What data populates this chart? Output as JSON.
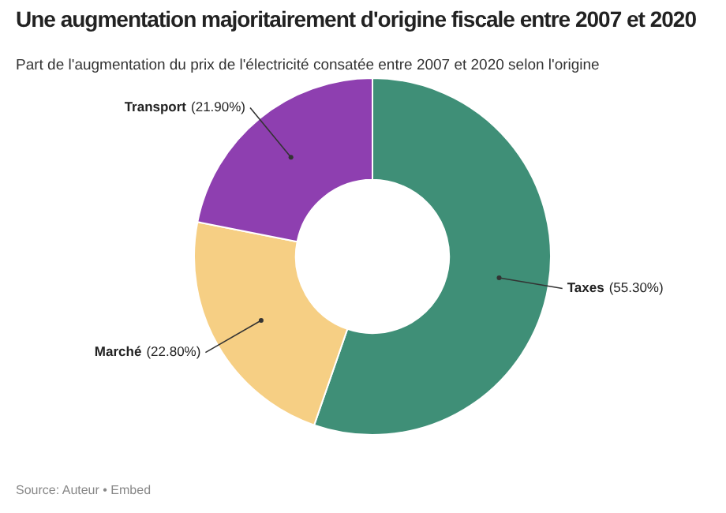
{
  "chart_data": {
    "type": "donut",
    "title": "Une augmentation majoritairement d'origine fiscale entre 2007 et 2020",
    "subtitle": "Part de l'augmentation du prix de l'électricité consatée entre 2007 et 2020 selon l'origine",
    "categories": [
      "Taxes",
      "Marché",
      "Transport"
    ],
    "values": [
      55.3,
      22.8,
      21.9
    ],
    "value_labels": [
      "(55.30%)",
      "(22.80%)",
      "(21.90%)"
    ],
    "colors": [
      "#3f8f77",
      "#f6cf84",
      "#8e3fb0"
    ],
    "annotations": [
      "Source: Auteur • Embed"
    ],
    "legend": false
  }
}
